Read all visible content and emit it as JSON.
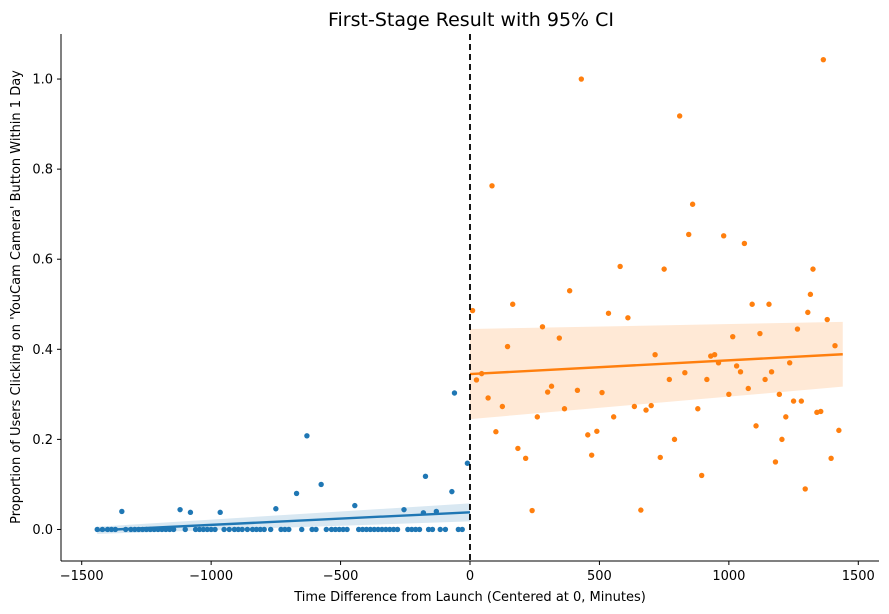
{
  "chart_data": {
    "type": "scatter",
    "title": "First-Stage Result with 95% CI",
    "xlabel": "Time Difference from Launch (Centered at 0, Minutes)",
    "ylabel": "Proportion of Users Clicking on 'YouCam Camera' Button Within 1 Day",
    "xlim": [
      -1580,
      1580
    ],
    "ylim": [
      -0.07,
      1.1
    ],
    "xticks": [
      -1500,
      -1000,
      -500,
      0,
      500,
      1000,
      1500
    ],
    "xtick_labels": [
      "−1500",
      "−1000",
      "−500",
      "0",
      "500",
      "1000",
      "1500"
    ],
    "yticks": [
      0.0,
      0.2,
      0.4,
      0.6,
      0.8,
      1.0
    ],
    "ytick_labels": [
      "0.0",
      "0.2",
      "0.4",
      "0.6",
      "0.8",
      "1.0"
    ],
    "grid": false,
    "cutoff": 0,
    "colors": {
      "pre": "#1f77b4",
      "post": "#ff7f0e",
      "cutoff": "#000000"
    },
    "series": [
      {
        "color": "#1f77b4",
        "points": [
          [
            -1440,
            0
          ],
          [
            -1420,
            0
          ],
          [
            -1400,
            0
          ],
          [
            -1385,
            0
          ],
          [
            -1370,
            0
          ],
          [
            -1345,
            0.04
          ],
          [
            -1330,
            0
          ],
          [
            -1310,
            0
          ],
          [
            -1295,
            0
          ],
          [
            -1280,
            0
          ],
          [
            -1265,
            0
          ],
          [
            -1250,
            0
          ],
          [
            -1235,
            0
          ],
          [
            -1220,
            0
          ],
          [
            -1205,
            0
          ],
          [
            -1190,
            0
          ],
          [
            -1175,
            0
          ],
          [
            -1160,
            0
          ],
          [
            -1145,
            0
          ],
          [
            -1120,
            0.044
          ],
          [
            -1100,
            0
          ],
          [
            -1080,
            0.038
          ],
          [
            -1060,
            0
          ],
          [
            -1045,
            0
          ],
          [
            -1030,
            0
          ],
          [
            -1015,
            0
          ],
          [
            -1000,
            0
          ],
          [
            -985,
            0
          ],
          [
            -965,
            0.038
          ],
          [
            -950,
            0
          ],
          [
            -930,
            0
          ],
          [
            -910,
            0
          ],
          [
            -895,
            0
          ],
          [
            -880,
            0
          ],
          [
            -860,
            0
          ],
          [
            -840,
            0
          ],
          [
            -825,
            0
          ],
          [
            -810,
            0
          ],
          [
            -795,
            0
          ],
          [
            -770,
            0
          ],
          [
            -750,
            0.046
          ],
          [
            -730,
            0
          ],
          [
            -715,
            0
          ],
          [
            -700,
            0
          ],
          [
            -670,
            0.08
          ],
          [
            -650,
            0
          ],
          [
            -630,
            0.208
          ],
          [
            -610,
            0
          ],
          [
            -595,
            0
          ],
          [
            -575,
            0.1
          ],
          [
            -555,
            0
          ],
          [
            -535,
            0
          ],
          [
            -520,
            0
          ],
          [
            -505,
            0
          ],
          [
            -490,
            0
          ],
          [
            -475,
            0
          ],
          [
            -445,
            0.053
          ],
          [
            -430,
            0
          ],
          [
            -415,
            0
          ],
          [
            -400,
            0
          ],
          [
            -385,
            0
          ],
          [
            -370,
            0
          ],
          [
            -355,
            0
          ],
          [
            -340,
            0
          ],
          [
            -325,
            0
          ],
          [
            -310,
            0
          ],
          [
            -295,
            0
          ],
          [
            -280,
            0
          ],
          [
            -255,
            0.044
          ],
          [
            -240,
            0
          ],
          [
            -225,
            0
          ],
          [
            -210,
            0
          ],
          [
            -195,
            0
          ],
          [
            -180,
            0.037
          ],
          [
            -172,
            0.118
          ],
          [
            -160,
            0
          ],
          [
            -145,
            0
          ],
          [
            -130,
            0.04
          ],
          [
            -115,
            0
          ],
          [
            -95,
            0
          ],
          [
            -70,
            0.084
          ],
          [
            -60,
            0.303
          ],
          [
            -45,
            0
          ],
          [
            -30,
            0
          ],
          [
            -10,
            0.147
          ]
        ],
        "fit": {
          "x": [
            -1440,
            0
          ],
          "y": [
            -0.002,
            0.038
          ]
        },
        "ci_half_width": [
          0.008,
          0.02
        ]
      },
      {
        "color": "#ff7f0e",
        "points": [
          [
            10,
            0.486
          ],
          [
            25,
            0.332
          ],
          [
            45,
            0.346
          ],
          [
            70,
            0.292
          ],
          [
            85,
            0.763
          ],
          [
            100,
            0.217
          ],
          [
            125,
            0.273
          ],
          [
            145,
            0.406
          ],
          [
            165,
            0.5
          ],
          [
            185,
            0.18
          ],
          [
            215,
            0.158
          ],
          [
            240,
            0.042
          ],
          [
            260,
            0.25
          ],
          [
            280,
            0.45
          ],
          [
            300,
            0.305
          ],
          [
            315,
            0.318
          ],
          [
            345,
            0.425
          ],
          [
            365,
            0.268
          ],
          [
            385,
            0.53
          ],
          [
            415,
            0.309
          ],
          [
            430,
            1.0
          ],
          [
            455,
            0.21
          ],
          [
            470,
            0.165
          ],
          [
            490,
            0.218
          ],
          [
            510,
            0.304
          ],
          [
            535,
            0.48
          ],
          [
            555,
            0.25
          ],
          [
            580,
            0.584
          ],
          [
            610,
            0.47
          ],
          [
            635,
            0.273
          ],
          [
            660,
            0.043
          ],
          [
            680,
            0.265
          ],
          [
            700,
            0.275
          ],
          [
            715,
            0.388
          ],
          [
            735,
            0.16
          ],
          [
            750,
            0.578
          ],
          [
            770,
            0.333
          ],
          [
            790,
            0.2
          ],
          [
            810,
            0.918
          ],
          [
            830,
            0.348
          ],
          [
            845,
            0.655
          ],
          [
            860,
            0.722
          ],
          [
            880,
            0.268
          ],
          [
            895,
            0.12
          ],
          [
            915,
            0.333
          ],
          [
            930,
            0.385
          ],
          [
            945,
            0.388
          ],
          [
            960,
            0.37
          ],
          [
            980,
            0.652
          ],
          [
            1000,
            0.3
          ],
          [
            1015,
            0.428
          ],
          [
            1030,
            0.363
          ],
          [
            1045,
            0.35
          ],
          [
            1060,
            0.635
          ],
          [
            1075,
            0.313
          ],
          [
            1090,
            0.5
          ],
          [
            1105,
            0.23
          ],
          [
            1120,
            0.435
          ],
          [
            1140,
            0.333
          ],
          [
            1155,
            0.5
          ],
          [
            1165,
            0.35
          ],
          [
            1180,
            0.15
          ],
          [
            1195,
            0.3
          ],
          [
            1205,
            0.2
          ],
          [
            1220,
            0.25
          ],
          [
            1235,
            0.37
          ],
          [
            1250,
            0.285
          ],
          [
            1265,
            0.445
          ],
          [
            1280,
            0.285
          ],
          [
            1295,
            0.09
          ],
          [
            1305,
            0.482
          ],
          [
            1315,
            0.522
          ],
          [
            1325,
            0.578
          ],
          [
            1340,
            0.26
          ],
          [
            1355,
            0.262
          ],
          [
            1365,
            1.043
          ],
          [
            1380,
            0.466
          ],
          [
            1395,
            0.158
          ],
          [
            1410,
            0.408
          ],
          [
            1425,
            0.22
          ]
        ],
        "fit": {
          "x": [
            0,
            1440
          ],
          "y": [
            0.345,
            0.389
          ]
        },
        "ci_half_width": [
          0.1,
          0.072
        ]
      }
    ]
  }
}
